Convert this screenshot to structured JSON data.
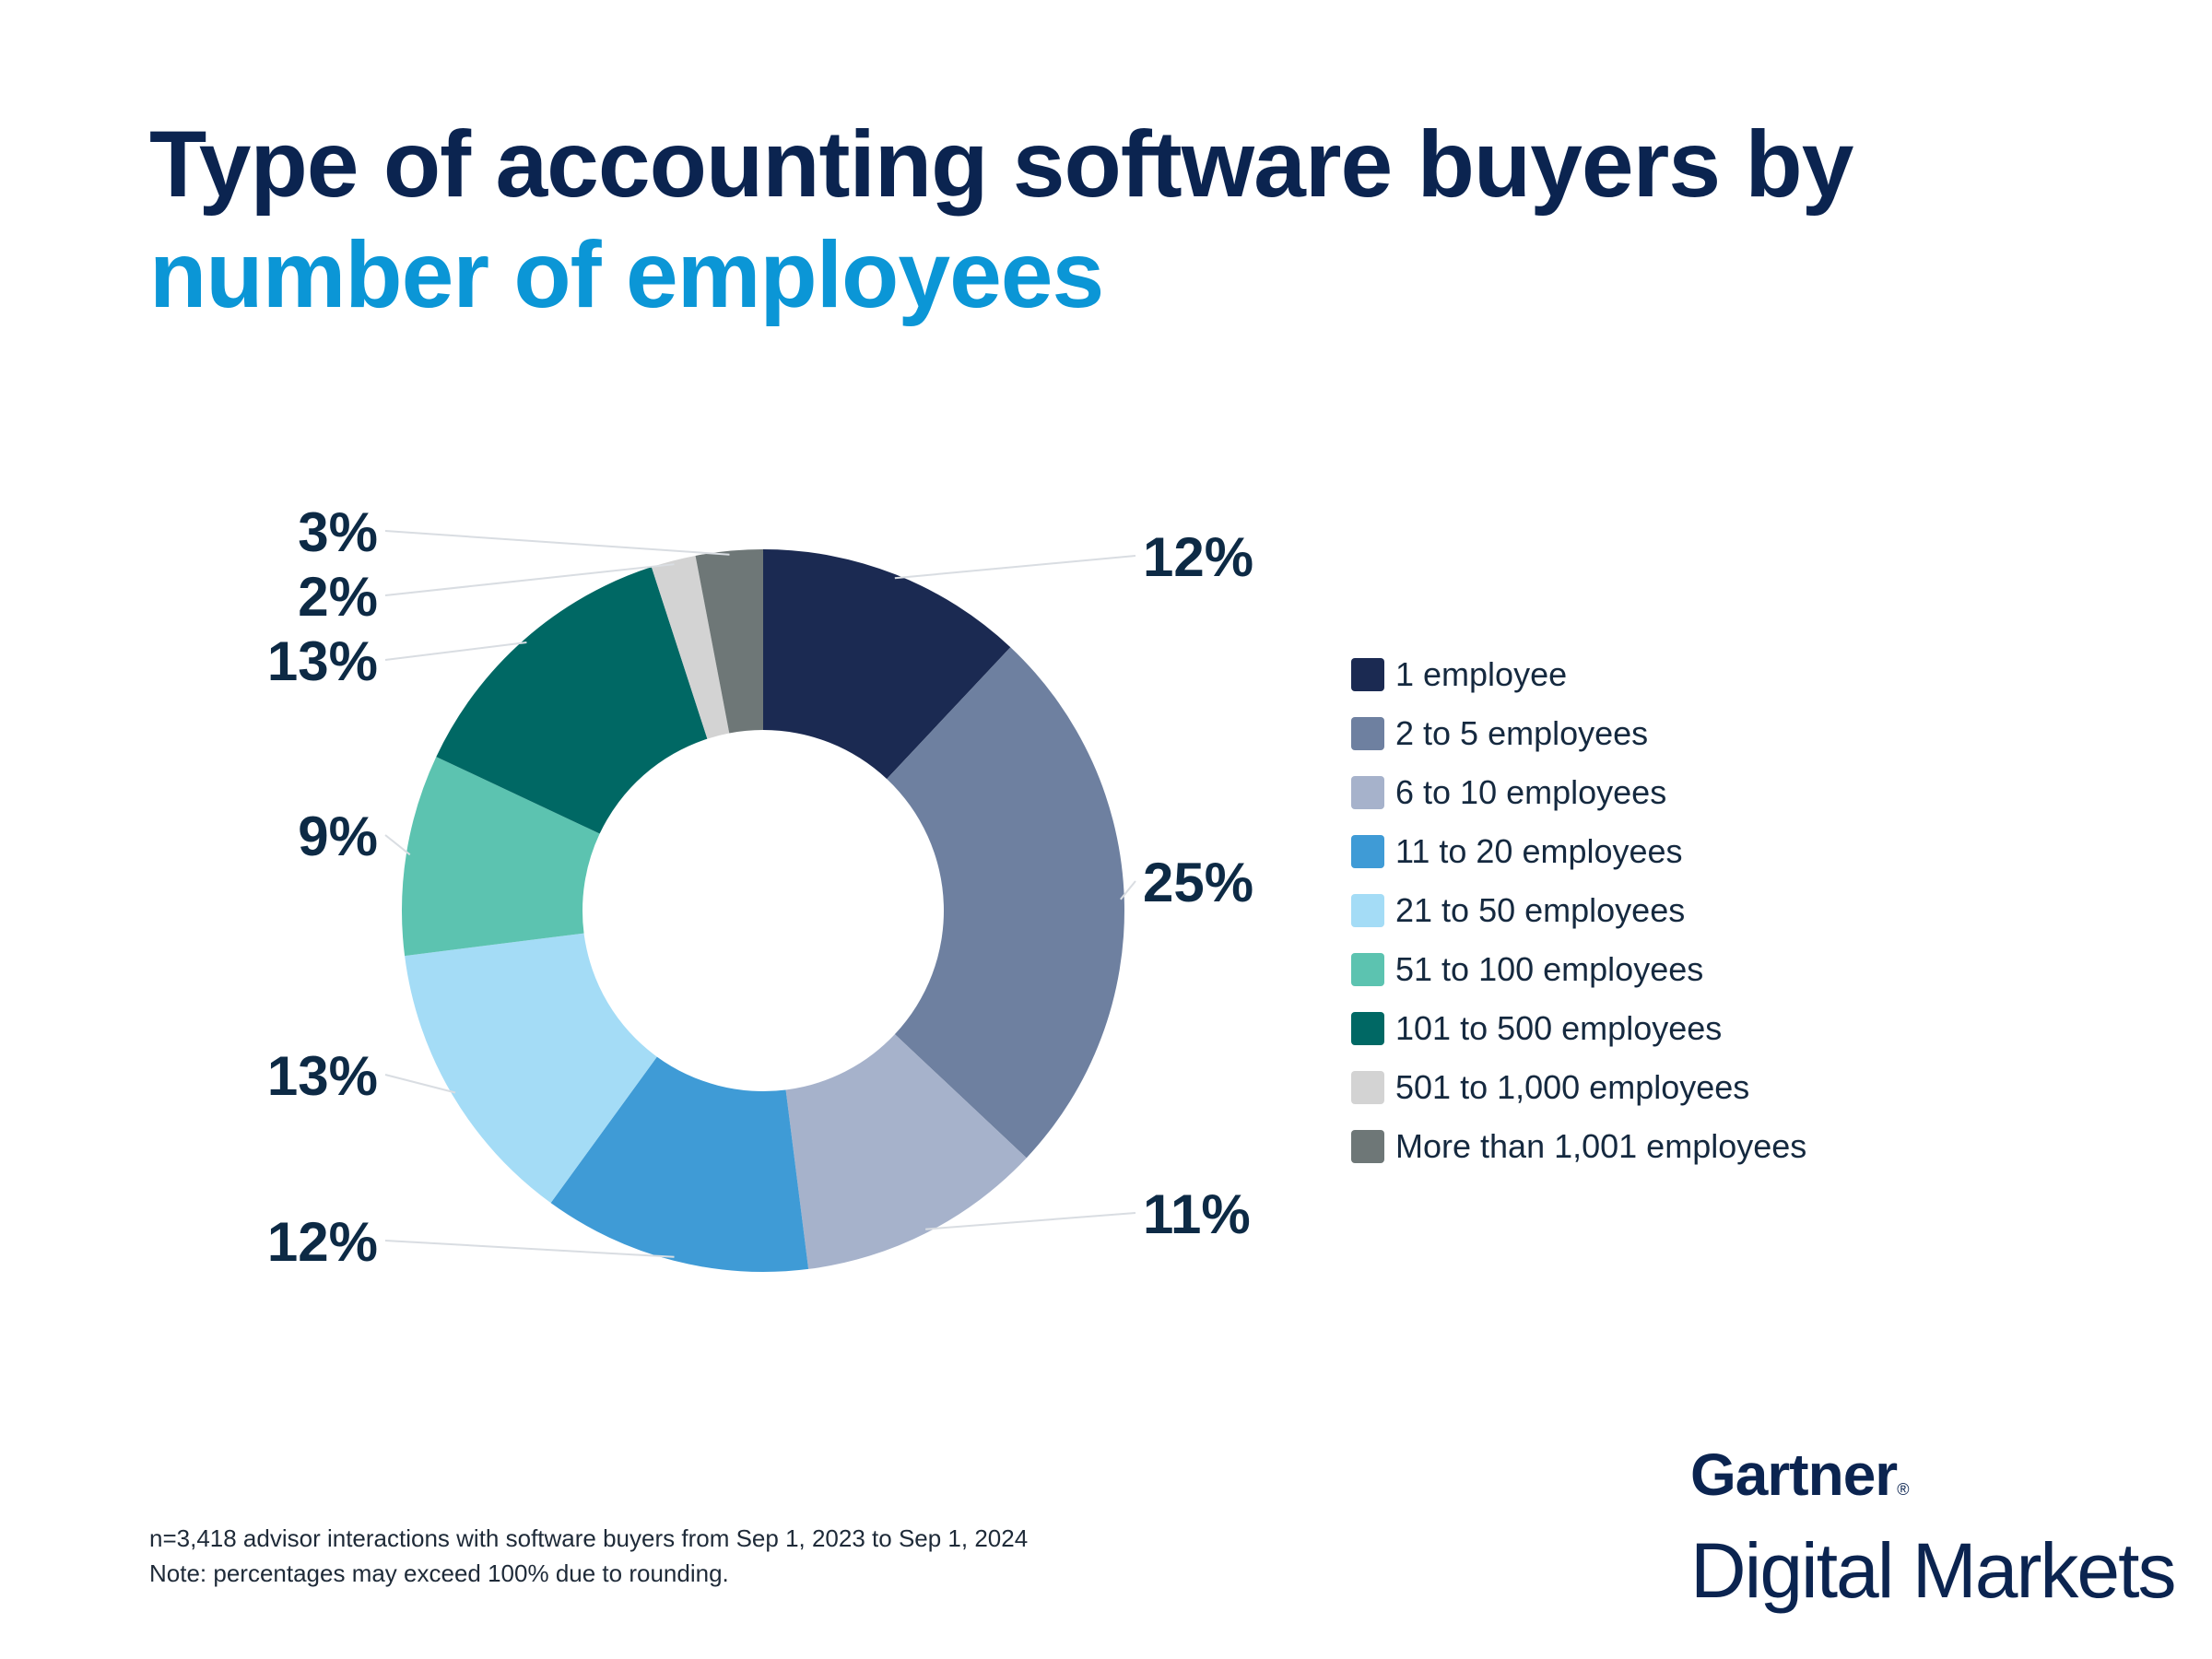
{
  "title": {
    "line1": "Type of accounting software buyers by",
    "line2": "number of employees",
    "line1_color": "#0b2450",
    "line2_color": "#0b96d6"
  },
  "chart_data": {
    "type": "pie",
    "donut": true,
    "title": "Type of accounting software buyers by number of employees",
    "categories": [
      "1 employee",
      "2 to 5 employees",
      "6 to 10 employees",
      "11 to 20 employees",
      "21 to 50 employees",
      "51 to 100 employees",
      "101 to 500 employees",
      "501 to 1,000 employees",
      "More than 1,001 employees"
    ],
    "values": [
      12,
      25,
      11,
      12,
      13,
      9,
      13,
      2,
      3
    ],
    "labels": [
      "12%",
      "25%",
      "11%",
      "12%",
      "13%",
      "9%",
      "13%",
      "2%",
      "3%"
    ],
    "colors": [
      "#1b2a52",
      "#6e80a0",
      "#a6b2cb",
      "#3f9bd6",
      "#a4dcf6",
      "#5cc3b0",
      "#006864",
      "#d3d3d3",
      "#6e7777"
    ],
    "legend_position": "right",
    "unit": "%"
  },
  "notes": {
    "line1": "n=3,418 advisor interactions with software buyers from Sep 1, 2023 to Sep 1, 2024",
    "line2": "Note: percentages may exceed 100% due to rounding."
  },
  "brand": {
    "line1": "Gartner",
    "reg": "®",
    "line2": "Digital Markets"
  }
}
